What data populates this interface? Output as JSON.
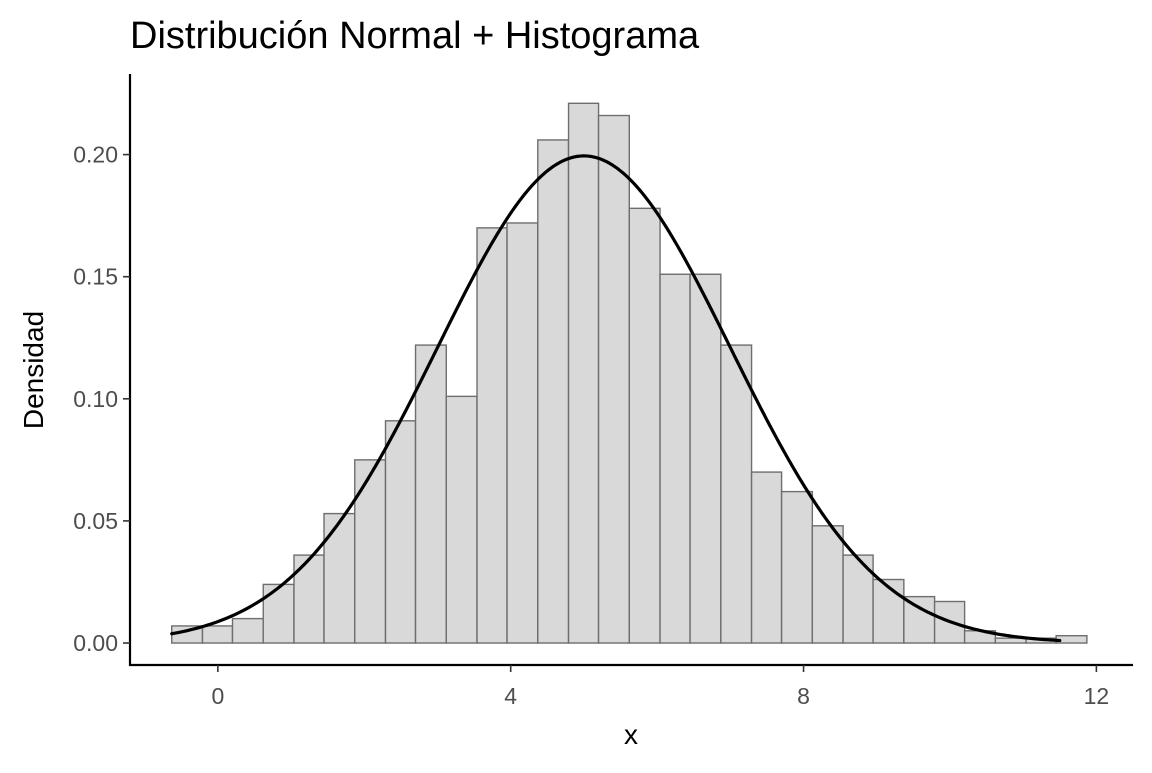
{
  "chart_data": {
    "type": "bar",
    "title": "Distribución Normal + Histograma",
    "xlabel": "x",
    "ylabel": "Densidad",
    "xlim": [
      -1.2,
      12.5
    ],
    "ylim": [
      -0.009,
      0.233
    ],
    "x_ticks": [
      0,
      4,
      8,
      12
    ],
    "y_ticks": [
      0.0,
      0.05,
      0.1,
      0.15,
      0.2
    ],
    "x_tick_labels": [
      "0",
      "4",
      "8",
      "12"
    ],
    "y_tick_labels": [
      "0.00",
      "0.05",
      "0.10",
      "0.15",
      "0.20"
    ],
    "grid": false,
    "bin_width": 0.4167,
    "bins": [
      {
        "x_start": -0.63,
        "x_end": -0.21,
        "density": 0.007
      },
      {
        "x_start": -0.21,
        "x_end": 0.2,
        "density": 0.007
      },
      {
        "x_start": 0.2,
        "x_end": 0.62,
        "density": 0.01
      },
      {
        "x_start": 0.62,
        "x_end": 1.04,
        "density": 0.024
      },
      {
        "x_start": 1.04,
        "x_end": 1.45,
        "density": 0.036
      },
      {
        "x_start": 1.45,
        "x_end": 1.87,
        "density": 0.053
      },
      {
        "x_start": 1.87,
        "x_end": 2.29,
        "density": 0.075
      },
      {
        "x_start": 2.29,
        "x_end": 2.7,
        "density": 0.091
      },
      {
        "x_start": 2.7,
        "x_end": 3.12,
        "density": 0.122
      },
      {
        "x_start": 3.12,
        "x_end": 3.54,
        "density": 0.101
      },
      {
        "x_start": 3.54,
        "x_end": 3.95,
        "density": 0.17
      },
      {
        "x_start": 3.95,
        "x_end": 4.37,
        "density": 0.172
      },
      {
        "x_start": 4.37,
        "x_end": 4.79,
        "density": 0.206
      },
      {
        "x_start": 4.79,
        "x_end": 5.2,
        "density": 0.221
      },
      {
        "x_start": 5.2,
        "x_end": 5.62,
        "density": 0.216
      },
      {
        "x_start": 5.62,
        "x_end": 6.04,
        "density": 0.178
      },
      {
        "x_start": 6.04,
        "x_end": 6.45,
        "density": 0.151
      },
      {
        "x_start": 6.45,
        "x_end": 6.87,
        "density": 0.151
      },
      {
        "x_start": 6.87,
        "x_end": 7.29,
        "density": 0.122
      },
      {
        "x_start": 7.29,
        "x_end": 7.7,
        "density": 0.07
      },
      {
        "x_start": 7.7,
        "x_end": 8.12,
        "density": 0.062
      },
      {
        "x_start": 8.12,
        "x_end": 8.54,
        "density": 0.048
      },
      {
        "x_start": 8.54,
        "x_end": 8.95,
        "density": 0.036
      },
      {
        "x_start": 8.95,
        "x_end": 9.37,
        "density": 0.026
      },
      {
        "x_start": 9.37,
        "x_end": 9.79,
        "density": 0.019
      },
      {
        "x_start": 9.79,
        "x_end": 10.2,
        "density": 0.017
      },
      {
        "x_start": 10.2,
        "x_end": 10.62,
        "density": 0.005
      },
      {
        "x_start": 10.62,
        "x_end": 11.04,
        "density": 0.002
      },
      {
        "x_start": 11.04,
        "x_end": 11.45,
        "density": 0.002
      },
      {
        "x_start": 11.45,
        "x_end": 11.87,
        "density": 0.003
      }
    ],
    "curve": {
      "type": "line",
      "distribution": "normal",
      "mean": 5,
      "sd": 2,
      "x_range": [
        -0.63,
        11.5
      ]
    }
  },
  "colors": {
    "bar_fill": "#d9d9d9",
    "bar_stroke": "#6e6e6e",
    "curve": "#000000",
    "tick_label": "#4d4d4d",
    "axis": "#000000",
    "background": "#ffffff"
  }
}
